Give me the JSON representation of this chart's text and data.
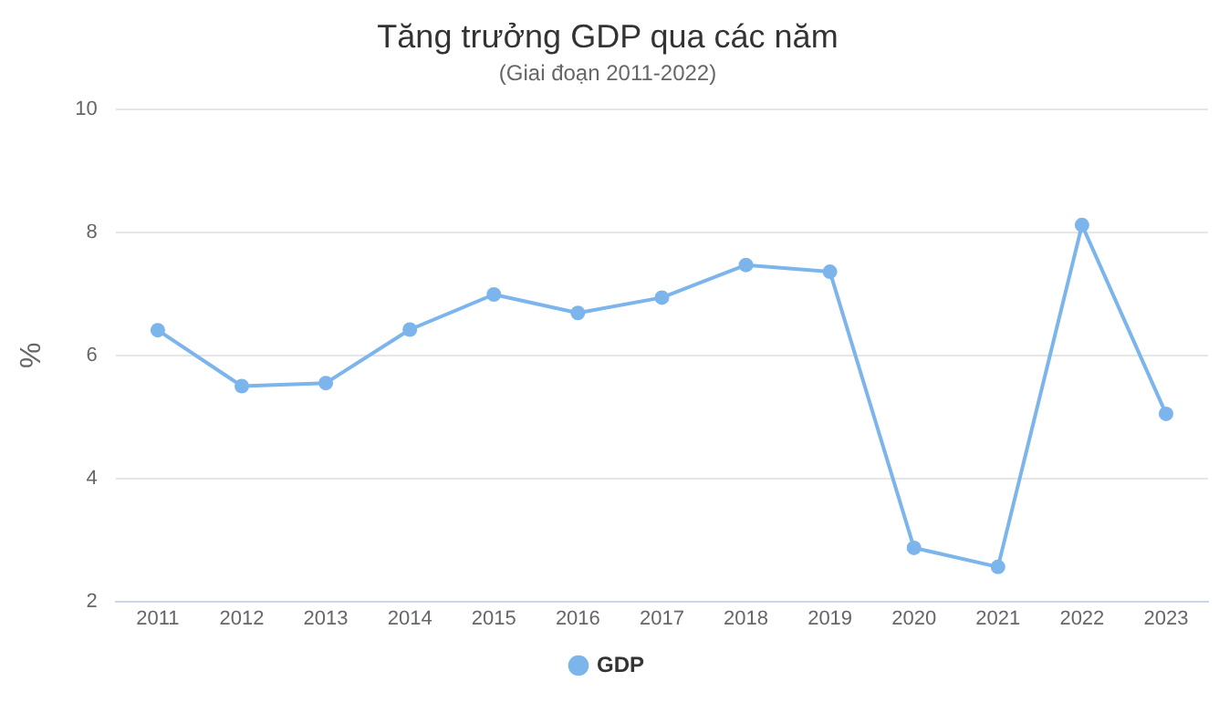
{
  "chart_data": {
    "type": "line",
    "title": "Tăng trưởng GDP qua các năm",
    "subtitle": "(Giai đoạn 2011-2022)",
    "ylabel": "%",
    "categories": [
      "2011",
      "2012",
      "2013",
      "2014",
      "2015",
      "2016",
      "2017",
      "2018",
      "2019",
      "2020",
      "2021",
      "2022",
      "2023"
    ],
    "series": [
      {
        "name": "GDP",
        "color": "#7cb5ec",
        "values": [
          6.41,
          5.5,
          5.55,
          6.42,
          6.99,
          6.69,
          6.94,
          7.47,
          7.36,
          2.87,
          2.56,
          8.12,
          5.05
        ]
      }
    ],
    "ylim": [
      2,
      10
    ],
    "yticks": [
      2,
      4,
      6,
      8,
      10
    ],
    "grid": "y",
    "legend": "bottom",
    "marker": "circle",
    "line_style": "solid"
  }
}
